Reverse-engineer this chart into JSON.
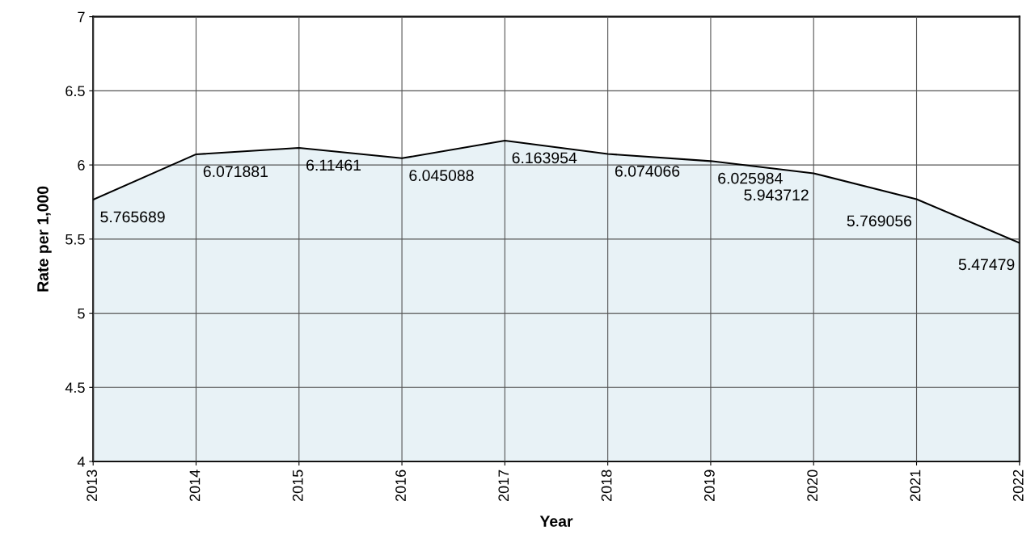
{
  "chart_data": {
    "type": "area",
    "xlabel": "Year",
    "ylabel": "Rate per 1,000",
    "categories": [
      "2013",
      "2014",
      "2015",
      "2016",
      "2017",
      "2018",
      "2019",
      "2020",
      "2021",
      "2022"
    ],
    "series": [
      {
        "color": "#e8f2f6",
        "values": [
          5.765689,
          6.071881,
          6.11461,
          6.045088,
          6.163954,
          6.074066,
          6.025984,
          5.943712,
          5.769056,
          5.47479
        ]
      }
    ],
    "ylim": [
      4,
      7
    ],
    "yticks": [
      4,
      4.5,
      5,
      5.5,
      6,
      6.5,
      7
    ],
    "grid": true,
    "data_labels": true
  }
}
